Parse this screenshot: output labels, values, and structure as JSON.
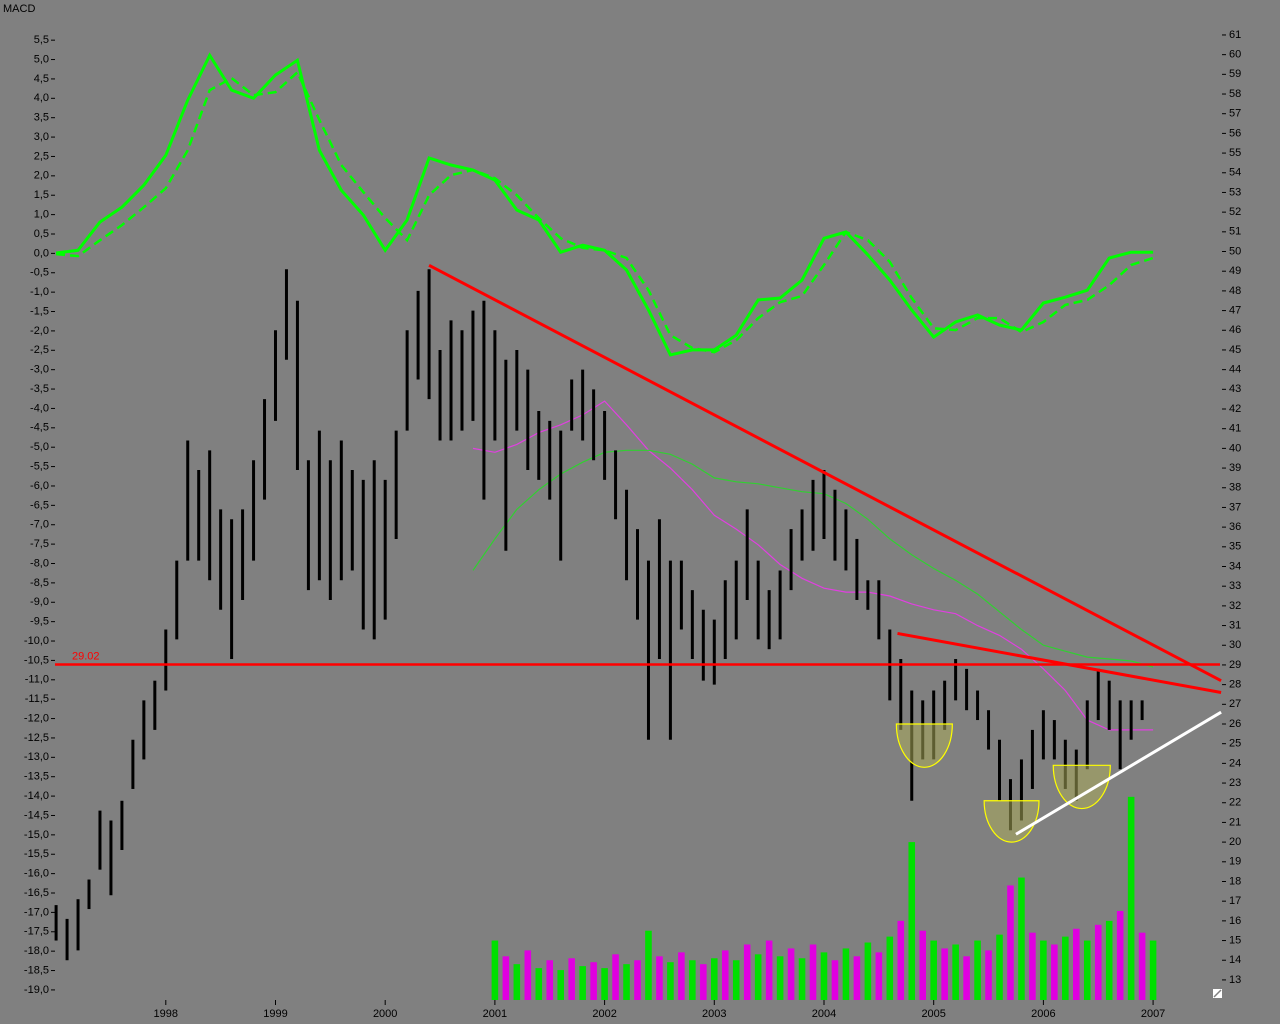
{
  "chart_data": {
    "type": "stock",
    "title": "MACD",
    "xlim": [
      1996.99,
      2007.61
    ],
    "xticks": [
      1998,
      1999,
      2000,
      2001,
      2002,
      2003,
      2004,
      2005,
      2006,
      2007
    ],
    "ylim": [
      -19.26,
      6.02
    ],
    "yticks": [
      {
        "value": 5.5,
        "label": "5,5"
      },
      {
        "value": 5,
        "label": "5,0"
      },
      {
        "value": 4.5,
        "label": "4,5"
      },
      {
        "value": 4,
        "label": "4,0"
      },
      {
        "value": 3.5,
        "label": "3,5"
      },
      {
        "value": 3,
        "label": "3,0"
      },
      {
        "value": 2.5,
        "label": "2,5"
      },
      {
        "value": 2,
        "label": "2,0"
      },
      {
        "value": 1.5,
        "label": "1,5"
      },
      {
        "value": 1,
        "label": "1,0"
      },
      {
        "value": 0.5,
        "label": "0,5"
      },
      {
        "value": 0,
        "label": "0,0"
      },
      {
        "value": -0.5,
        "label": "-0,5"
      },
      {
        "value": -1,
        "label": "-1,0"
      },
      {
        "value": -1.5,
        "label": "-1,5"
      },
      {
        "value": -2,
        "label": "-2,0"
      },
      {
        "value": -2.5,
        "label": "-2,5"
      },
      {
        "value": -3,
        "label": "-3,0"
      },
      {
        "value": -3.5,
        "label": "-3,5"
      },
      {
        "value": -4,
        "label": "-4,0"
      },
      {
        "value": -4.5,
        "label": "-4,5"
      },
      {
        "value": -5,
        "label": "-5,0"
      },
      {
        "value": -5.5,
        "label": "-5,5"
      },
      {
        "value": -6,
        "label": "-6,0"
      },
      {
        "value": -6.5,
        "label": "-6,5"
      },
      {
        "value": -7,
        "label": "-7,0"
      },
      {
        "value": -7.5,
        "label": "-7,5"
      },
      {
        "value": -8,
        "label": "-8,0"
      },
      {
        "value": -8.5,
        "label": "-8,5"
      },
      {
        "value": -9,
        "label": "-9,0"
      },
      {
        "value": -9.5,
        "label": "-9,5"
      },
      {
        "value": -10,
        "label": "-10,0"
      },
      {
        "value": -10.5,
        "label": "-10,5"
      },
      {
        "value": -11,
        "label": "-11,0"
      },
      {
        "value": -11.5,
        "label": "-11,5"
      },
      {
        "value": -12,
        "label": "-12,0"
      },
      {
        "value": -12.5,
        "label": "-12,5"
      },
      {
        "value": -13,
        "label": "-13,0"
      },
      {
        "value": -13.5,
        "label": "-13,5"
      },
      {
        "value": -14,
        "label": "-14,0"
      },
      {
        "value": -14.5,
        "label": "-14,5"
      },
      {
        "value": -15,
        "label": "-15,0"
      },
      {
        "value": -15.5,
        "label": "-15,5"
      },
      {
        "value": -16,
        "label": "-16,0"
      },
      {
        "value": -16.5,
        "label": "-16,5"
      },
      {
        "value": -17,
        "label": "-17,0"
      },
      {
        "value": -17.5,
        "label": "-17,5"
      },
      {
        "value": -18,
        "label": "-18,0"
      },
      {
        "value": -18.5,
        "label": "-18,5"
      },
      {
        "value": -19,
        "label": "-19,0"
      }
    ],
    "y2lim": [
      11.98,
      61.76
    ],
    "y2ticks": [
      61,
      60,
      59,
      58,
      57,
      56,
      55,
      54,
      53,
      52,
      51,
      50,
      49,
      48,
      47,
      46,
      45,
      44,
      43,
      42,
      41,
      40,
      39,
      38,
      37,
      36,
      35,
      34,
      33,
      32,
      31,
      30,
      29,
      28,
      27,
      26,
      25,
      24,
      23,
      22,
      21,
      20,
      19,
      18,
      17,
      16,
      15,
      14,
      13
    ],
    "macd": {
      "color": "#00ff00",
      "x": [
        1997.0,
        1997.2,
        1997.4,
        1997.6,
        1997.8,
        1998.0,
        1998.2,
        1998.4,
        1998.6,
        1998.8,
        1999.0,
        1999.2,
        1999.4,
        1999.6,
        1999.8,
        2000.0,
        2000.2,
        2000.4,
        2000.6,
        2000.8,
        2001.0,
        2001.2,
        2001.4,
        2001.6,
        2001.8,
        2002.0,
        2002.2,
        2002.4,
        2002.6,
        2002.8,
        2003.0,
        2003.2,
        2003.4,
        2003.6,
        2003.8,
        2004.0,
        2004.2,
        2004.4,
        2004.6,
        2004.8,
        2005.0,
        2005.2,
        2005.4,
        2005.6,
        2005.8,
        2006.0,
        2006.2,
        2006.4,
        2006.6,
        2006.8,
        2007.0
      ],
      "line": [
        0.01,
        0.08,
        0.81,
        1.19,
        1.76,
        2.53,
        3.95,
        5.11,
        4.21,
        4.0,
        4.6,
        4.98,
        2.66,
        1.63,
        0.99,
        0.08,
        0.86,
        2.46,
        2.28,
        2.15,
        1.89,
        1.12,
        0.86,
        0.03,
        0.21,
        0.08,
        -0.43,
        -1.46,
        -2.62,
        -2.49,
        -2.49,
        -2.11,
        -1.2,
        -1.15,
        -0.69,
        0.39,
        0.55,
        -0.04,
        -0.69,
        -1.46,
        -2.16,
        -1.77,
        -1.59,
        -1.85,
        -1.98,
        -1.28,
        -1.13,
        -0.95,
        -0.12,
        0.03,
        0.03
      ],
      "signal": [
        -0.02,
        -0.07,
        0.34,
        0.73,
        1.19,
        1.68,
        2.66,
        4.21,
        4.52,
        4.08,
        4.16,
        4.67,
        3.44,
        2.28,
        1.58,
        0.91,
        0.34,
        1.5,
        2.02,
        2.15,
        1.94,
        1.5,
        0.91,
        0.39,
        0.14,
        0.08,
        -0.12,
        -0.95,
        -2.11,
        -2.44,
        -2.55,
        -2.24,
        -1.67,
        -1.26,
        -1.1,
        -0.3,
        0.55,
        0.34,
        -0.22,
        -1.15,
        -1.93,
        -1.98,
        -1.67,
        -1.67,
        -2.03,
        -1.77,
        -1.33,
        -1.2,
        -0.82,
        -0.3,
        -0.12
      ]
    },
    "price": {
      "color": "#000000",
      "axis": "y2",
      "x": [
        1997.0,
        1997.1,
        1997.2,
        1997.3,
        1997.4,
        1997.5,
        1997.6,
        1997.7,
        1997.8,
        1997.9,
        1998.0,
        1998.1,
        1998.2,
        1998.3,
        1998.4,
        1998.5,
        1998.6,
        1998.7,
        1998.8,
        1998.9,
        1999.0,
        1999.1,
        1999.2,
        1999.3,
        1999.4,
        1999.5,
        1999.6,
        1999.7,
        1999.8,
        1999.9,
        2000.0,
        2000.1,
        2000.2,
        2000.3,
        2000.4,
        2000.5,
        2000.6,
        2000.7,
        2000.8,
        2000.9,
        2001.0,
        2001.1,
        2001.2,
        2001.3,
        2001.4,
        2001.5,
        2001.6,
        2001.7,
        2001.8,
        2001.9,
        2002.0,
        2002.1,
        2002.2,
        2002.3,
        2002.4,
        2002.5,
        2002.6,
        2002.7,
        2002.8,
        2002.9,
        2003.0,
        2003.1,
        2003.2,
        2003.3,
        2003.4,
        2003.5,
        2003.6,
        2003.7,
        2003.8,
        2003.9,
        2004.0,
        2004.1,
        2004.2,
        2004.3,
        2004.4,
        2004.5,
        2004.6,
        2004.7,
        2004.8,
        2004.9,
        2005.0,
        2005.1,
        2005.2,
        2005.3,
        2005.4,
        2005.5,
        2005.6,
        2005.7,
        2005.8,
        2005.9,
        2006.0,
        2006.1,
        2006.2,
        2006.3,
        2006.4,
        2006.5,
        2006.6,
        2006.7,
        2006.8,
        2006.9
      ],
      "high": [
        16.8,
        16.1,
        17.1,
        18.1,
        21.6,
        21.1,
        22.1,
        25.2,
        27.2,
        28.2,
        30.8,
        34.3,
        40.4,
        38.9,
        39.9,
        36.9,
        36.4,
        36.9,
        39.4,
        42.5,
        46.0,
        49.1,
        47.5,
        39.4,
        40.9,
        39.4,
        40.4,
        38.9,
        38.4,
        39.4,
        38.4,
        40.9,
        46.0,
        48.0,
        49.1,
        45.0,
        46.5,
        46.0,
        47.0,
        47.5,
        46.0,
        44.5,
        45.0,
        44.0,
        41.9,
        41.4,
        40.9,
        43.5,
        44.0,
        43.0,
        41.9,
        39.9,
        37.9,
        35.9,
        34.3,
        36.4,
        34.3,
        34.3,
        32.8,
        31.8,
        31.3,
        33.3,
        34.3,
        36.9,
        34.3,
        32.8,
        33.8,
        35.9,
        36.9,
        38.4,
        38.9,
        37.9,
        36.9,
        35.4,
        33.3,
        33.3,
        30.8,
        29.3,
        27.7,
        27.2,
        27.7,
        28.2,
        29.3,
        28.8,
        27.7,
        26.7,
        25.2,
        23.2,
        24.2,
        25.7,
        26.7,
        26.2,
        25.2,
        24.7,
        27.2,
        28.8,
        28.2,
        27.2,
        27.2,
        27.2
      ],
      "low": [
        15.0,
        14.0,
        14.5,
        16.6,
        18.6,
        17.3,
        19.6,
        22.7,
        24.2,
        25.7,
        27.7,
        30.3,
        34.3,
        34.3,
        33.3,
        31.8,
        29.3,
        32.3,
        34.3,
        37.4,
        41.4,
        44.5,
        38.9,
        32.8,
        33.3,
        32.3,
        33.3,
        33.8,
        30.8,
        30.3,
        31.3,
        35.4,
        40.9,
        43.5,
        42.5,
        40.4,
        40.4,
        40.9,
        41.4,
        37.4,
        40.4,
        34.8,
        40.9,
        38.9,
        38.4,
        37.4,
        34.3,
        40.9,
        40.4,
        39.4,
        38.4,
        36.4,
        33.3,
        31.3,
        25.2,
        29.3,
        25.2,
        30.8,
        29.3,
        28.2,
        28.0,
        29.3,
        30.3,
        32.3,
        30.3,
        29.8,
        30.3,
        32.8,
        34.3,
        34.8,
        35.4,
        34.3,
        33.8,
        32.3,
        31.8,
        30.3,
        27.2,
        25.7,
        22.1,
        24.2,
        24.2,
        25.7,
        27.2,
        26.7,
        26.2,
        24.7,
        22.1,
        20.6,
        21.1,
        22.7,
        24.2,
        24.2,
        22.7,
        22.1,
        23.7,
        26.2,
        25.7,
        23.7,
        25.2,
        26.2
      ]
    },
    "volume": {
      "axis": "y2",
      "colors": [
        "#00e000",
        "#e000e0"
      ],
      "x": [
        2001.0,
        2001.1,
        2001.2,
        2001.3,
        2001.4,
        2001.5,
        2001.6,
        2001.7,
        2001.8,
        2001.9,
        2002.0,
        2002.1,
        2002.2,
        2002.3,
        2002.4,
        2002.5,
        2002.6,
        2002.7,
        2002.8,
        2002.9,
        2003.0,
        2003.1,
        2003.2,
        2003.3,
        2003.4,
        2003.5,
        2003.6,
        2003.7,
        2003.8,
        2003.9,
        2004.0,
        2004.1,
        2004.2,
        2004.3,
        2004.4,
        2004.5,
        2004.6,
        2004.7,
        2004.8,
        2004.9,
        2005.0,
        2005.1,
        2005.2,
        2005.3,
        2005.4,
        2005.5,
        2005.6,
        2005.7,
        2005.8,
        2005.9,
        2006.0,
        2006.1,
        2006.2,
        2006.3,
        2006.4,
        2006.5,
        2006.6,
        2006.7,
        2006.8,
        2006.9,
        2007.0
      ],
      "values": [
        15.0,
        14.2,
        13.8,
        14.5,
        13.6,
        14.0,
        13.5,
        14.1,
        13.7,
        13.9,
        13.6,
        14.3,
        13.8,
        14.0,
        15.5,
        14.2,
        13.9,
        14.4,
        14.0,
        13.8,
        14.1,
        14.5,
        14.0,
        14.8,
        14.3,
        15.0,
        14.2,
        14.6,
        14.1,
        14.8,
        14.4,
        14.0,
        14.6,
        14.2,
        14.9,
        14.4,
        15.2,
        16.0,
        20.0,
        15.5,
        15.0,
        14.6,
        14.8,
        14.2,
        15.0,
        14.5,
        15.3,
        17.8,
        18.2,
        15.4,
        15.0,
        14.8,
        15.2,
        15.6,
        15.0,
        15.8,
        16.0,
        16.5,
        22.3,
        15.4,
        15.0
      ]
    },
    "moving_averages": {
      "axis": "y2",
      "x": [
        2000.8,
        2001.0,
        2001.2,
        2001.4,
        2001.6,
        2001.8,
        2002.0,
        2002.2,
        2002.4,
        2002.6,
        2002.8,
        2003.0,
        2003.2,
        2003.4,
        2003.6,
        2003.8,
        2004.0,
        2004.2,
        2004.4,
        2004.6,
        2004.8,
        2005.0,
        2005.2,
        2005.4,
        2005.6,
        2005.8,
        2006.0,
        2006.2,
        2006.4,
        2006.6,
        2006.8,
        2007.0
      ],
      "series": [
        {
          "color": "#e040e0",
          "values": [
            40.0,
            39.8,
            40.2,
            40.8,
            41.2,
            41.7,
            42.4,
            41.2,
            39.9,
            39.0,
            37.9,
            36.6,
            35.9,
            35.1,
            34.1,
            33.4,
            32.9,
            32.7,
            32.7,
            32.5,
            32.1,
            31.8,
            31.6,
            31.0,
            30.5,
            29.8,
            28.8,
            27.7,
            26.2,
            25.7,
            25.7,
            25.7
          ]
        },
        {
          "color": "#30d030",
          "values": [
            33.8,
            35.4,
            36.9,
            37.9,
            38.7,
            39.3,
            39.8,
            39.9,
            39.9,
            39.7,
            39.2,
            38.5,
            38.3,
            38.2,
            38.0,
            37.8,
            37.7,
            37.2,
            36.4,
            35.4,
            34.6,
            33.9,
            33.3,
            32.6,
            31.7,
            30.8,
            30.0,
            29.7,
            29.4,
            29.3,
            29.2,
            28.9
          ]
        }
      ]
    },
    "lines": [
      {
        "color": "#ff0000",
        "x": [
          2000.4,
          2007.62
        ],
        "y": [
          49.3,
          28.2
        ]
      },
      {
        "color": "#ff0000",
        "x": [
          2004.67,
          2007.62
        ],
        "y": [
          30.6,
          27.6
        ]
      },
      {
        "color": "#ffffff",
        "x": [
          2005.75,
          2007.62
        ],
        "y": [
          20.4,
          26.6
        ]
      }
    ],
    "hline": {
      "value": 29.02,
      "color": "#ff0000"
    },
    "cups": {
      "color": "#ffff00",
      "items": [
        {
          "x": [
            2004.66,
            2005.17
          ],
          "y": [
            26.0,
            23.8
          ]
        },
        {
          "x": [
            2005.46,
            2005.96
          ],
          "y": [
            22.1,
            20.0
          ]
        },
        {
          "x": [
            2006.09,
            2006.61
          ],
          "y": [
            23.9,
            21.7
          ]
        }
      ]
    }
  }
}
